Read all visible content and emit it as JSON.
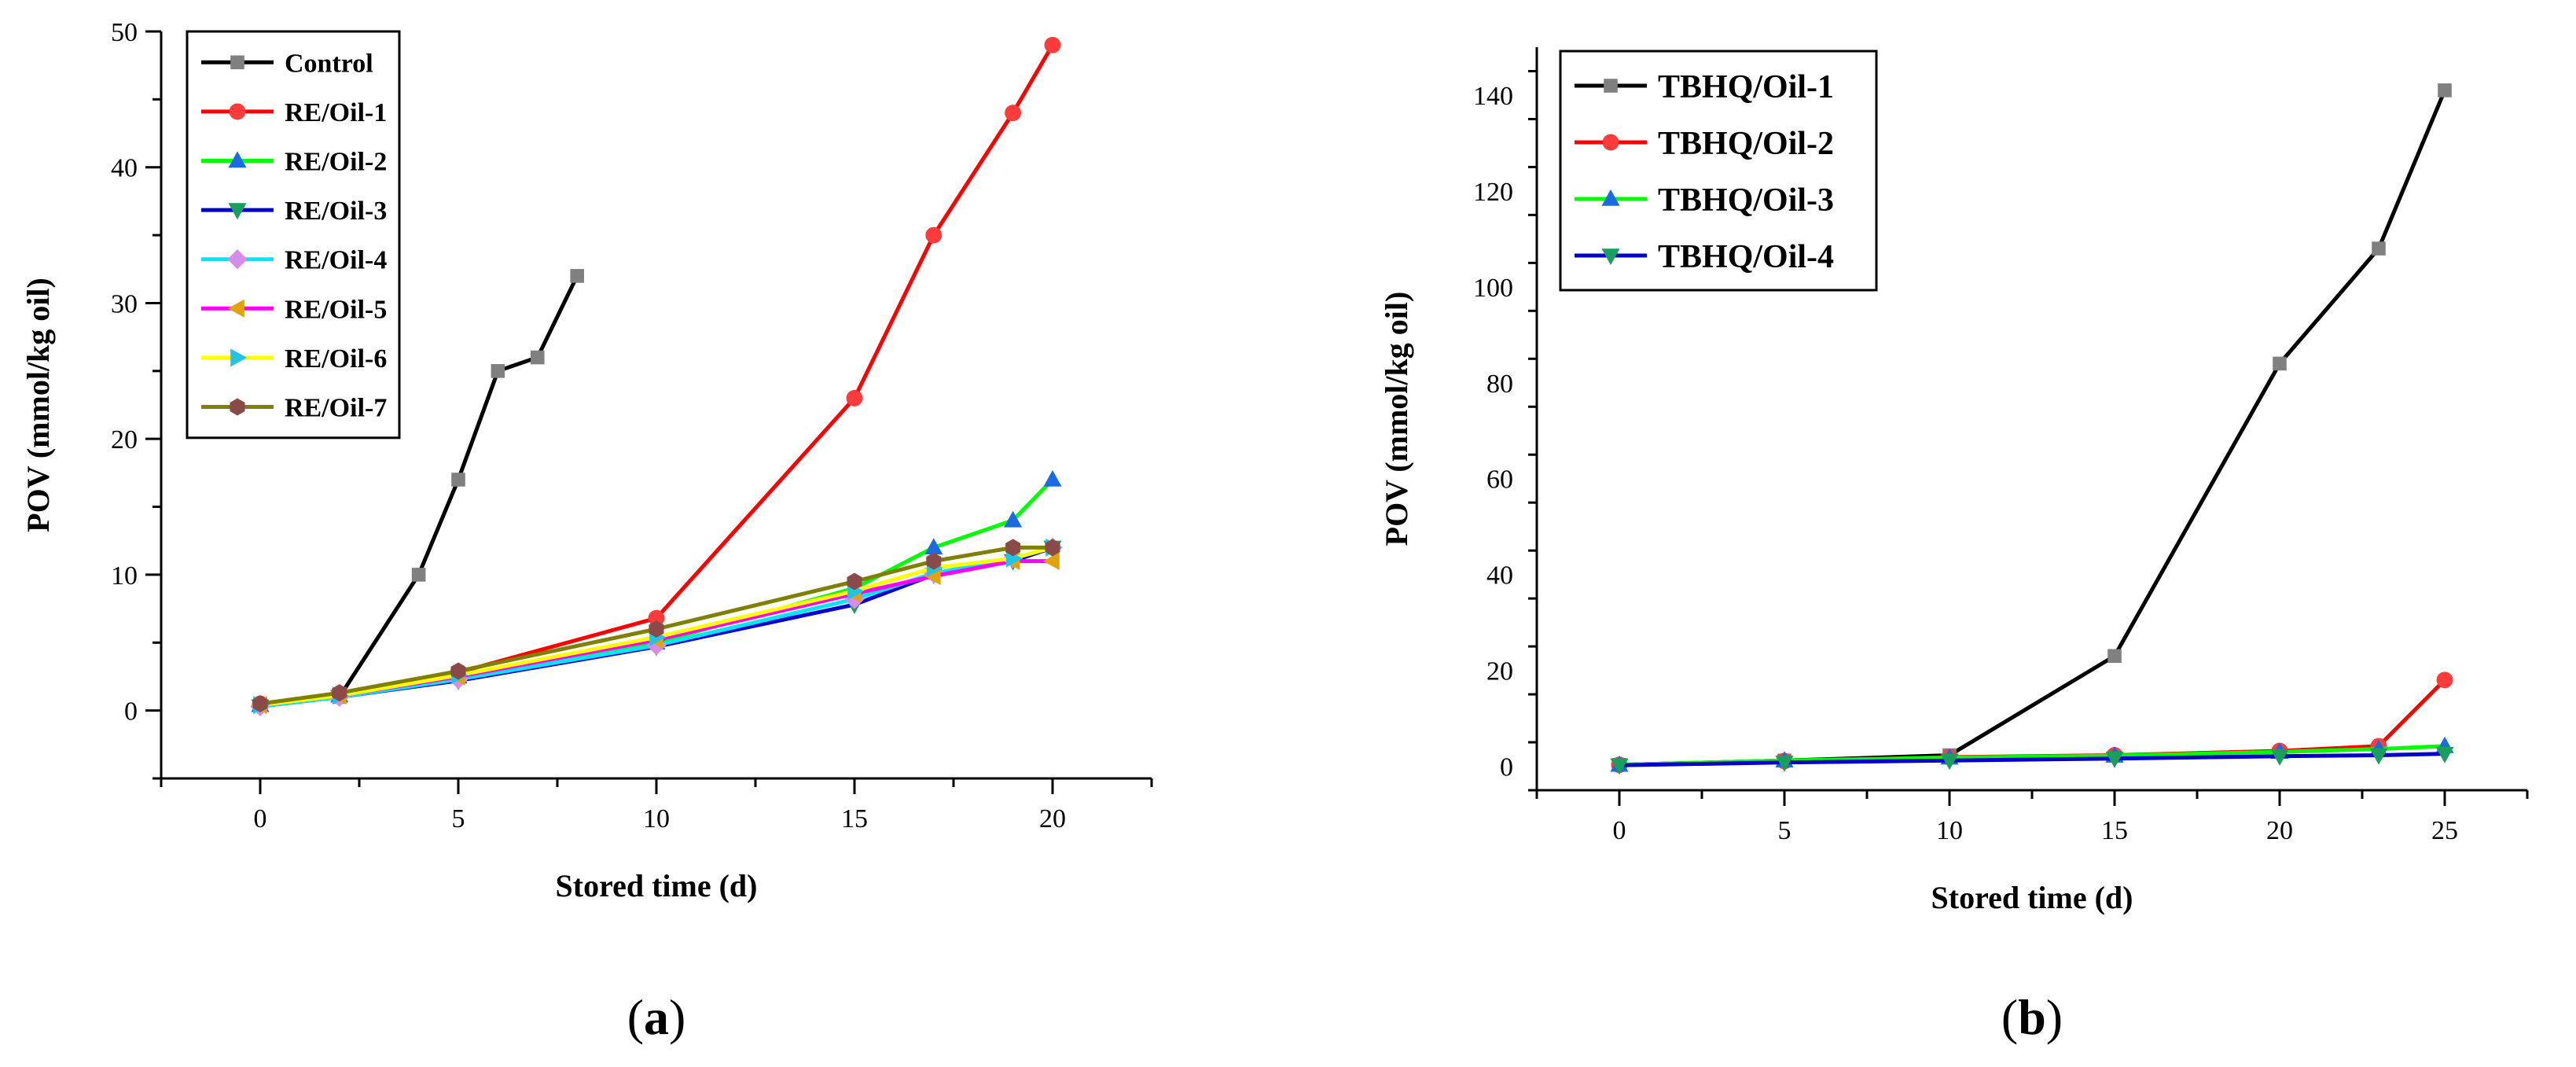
{
  "chart_data": [
    {
      "type": "line",
      "panel_label": "a",
      "xlabel": "Stored time (d)",
      "ylabel": "POV (mmol/kg oil)",
      "xlim": [
        -2.5,
        22.5
      ],
      "ylim": [
        -5,
        50
      ],
      "xticks": [
        0,
        5,
        10,
        15,
        20
      ],
      "yticks": [
        0,
        10,
        20,
        30,
        40,
        50
      ],
      "legend_position": "top-left",
      "series": [
        {
          "name": "Control",
          "color": "#000000",
          "marker_color": "#808080",
          "marker": "square",
          "x": [
            0,
            2,
            4,
            5,
            6,
            7,
            8
          ],
          "y": [
            0.4,
            1.0,
            10,
            17,
            25,
            26,
            32
          ]
        },
        {
          "name": "RE/Oil-1",
          "color": "#ff0000",
          "marker_color": "#ff3b3b",
          "marker": "circle",
          "x": [
            0,
            2,
            5,
            10,
            15,
            17,
            19,
            20
          ],
          "y": [
            0.5,
            1.2,
            2.8,
            6.8,
            23,
            35,
            44,
            49
          ]
        },
        {
          "name": "RE/Oil-2",
          "color": "#00ff00",
          "marker_color": "#1a6be0",
          "marker": "triangle-up",
          "x": [
            0,
            2,
            5,
            10,
            15,
            17,
            19,
            20
          ],
          "y": [
            0.4,
            1.1,
            2.5,
            5.0,
            9.0,
            12,
            14,
            17
          ]
        },
        {
          "name": "RE/Oil-3",
          "color": "#0000cc",
          "marker_color": "#1a9e5e",
          "marker": "triangle-down",
          "x": [
            0,
            2,
            5,
            10,
            15,
            17,
            19,
            20
          ],
          "y": [
            0.3,
            1.0,
            2.2,
            4.7,
            7.8,
            10.0,
            11.0,
            12.0
          ]
        },
        {
          "name": "RE/Oil-4",
          "color": "#00e5ff",
          "marker_color": "#d98be8",
          "marker": "diamond",
          "x": [
            0,
            2,
            5,
            10,
            15,
            17,
            19,
            20
          ],
          "y": [
            0.3,
            1.0,
            2.3,
            4.8,
            8.2,
            10.1,
            11.2,
            12.0
          ]
        },
        {
          "name": "RE/Oil-5",
          "color": "#ff00ff",
          "marker_color": "#e0a30a",
          "marker": "triangle-left",
          "x": [
            0,
            2,
            5,
            10,
            15,
            17,
            19,
            20
          ],
          "y": [
            0.4,
            1.1,
            2.5,
            5.2,
            8.6,
            9.9,
            11.0,
            11.0
          ]
        },
        {
          "name": "RE/Oil-6",
          "color": "#ffff00",
          "marker_color": "#22c4e6",
          "marker": "triangle-right",
          "x": [
            0,
            2,
            5,
            10,
            15,
            17,
            19,
            20
          ],
          "y": [
            0.4,
            1.1,
            2.6,
            5.4,
            8.8,
            10.5,
            11.2,
            12.0
          ]
        },
        {
          "name": "RE/Oil-7",
          "color": "#808000",
          "marker_color": "#8b4a4a",
          "marker": "hexagon",
          "x": [
            0,
            2,
            5,
            10,
            15,
            17,
            19,
            20
          ],
          "y": [
            0.5,
            1.3,
            2.9,
            6.0,
            9.5,
            11.0,
            12.0,
            12.0
          ]
        }
      ]
    },
    {
      "type": "line",
      "panel_label": "b",
      "xlabel": "Stored time (d)",
      "ylabel": "POV (mmol/kg oil)",
      "xlim": [
        -2.5,
        27.5
      ],
      "ylim": [
        -5,
        150
      ],
      "xticks": [
        0,
        5,
        10,
        15,
        20,
        25
      ],
      "yticks": [
        0,
        20,
        40,
        60,
        80,
        100,
        120,
        140
      ],
      "legend_position": "top-left",
      "series": [
        {
          "name": "TBHQ/Oil-1",
          "color": "#000000",
          "marker_color": "#808080",
          "marker": "square",
          "x": [
            0,
            5,
            10,
            15,
            20,
            23,
            25
          ],
          "y": [
            0.3,
            1.2,
            2.3,
            23,
            84,
            108,
            141
          ]
        },
        {
          "name": "TBHQ/Oil-2",
          "color": "#ff0000",
          "marker_color": "#ff3b3b",
          "marker": "circle",
          "x": [
            0,
            5,
            10,
            15,
            20,
            23,
            25
          ],
          "y": [
            0.3,
            1.1,
            1.9,
            2.3,
            3.2,
            4.2,
            18
          ]
        },
        {
          "name": "TBHQ/Oil-3",
          "color": "#00ff00",
          "marker_color": "#1a6be0",
          "marker": "triangle-up",
          "x": [
            0,
            5,
            10,
            15,
            20,
            23,
            25
          ],
          "y": [
            0.3,
            1.2,
            1.8,
            2.2,
            3.0,
            3.6,
            4.2
          ]
        },
        {
          "name": "TBHQ/Oil-4",
          "color": "#0000cc",
          "marker_color": "#1a9e5e",
          "marker": "triangle-down",
          "x": [
            0,
            5,
            10,
            15,
            20,
            23,
            25
          ],
          "y": [
            0.2,
            0.8,
            1.2,
            1.6,
            2.1,
            2.3,
            2.6
          ]
        }
      ]
    }
  ]
}
